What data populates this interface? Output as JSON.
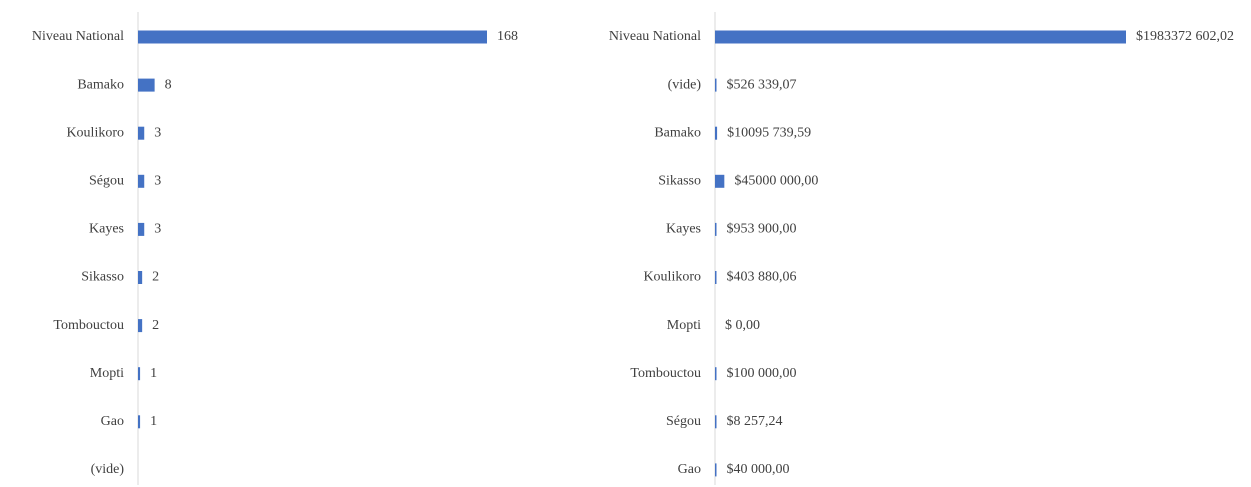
{
  "chart_data": [
    {
      "type": "bar",
      "orientation": "horizontal",
      "color": "#4472c4",
      "categories": [
        "Niveau National",
        "Bamako",
        "Koulikoro",
        "Ségou",
        "Kayes",
        "Sikasso",
        "Tombouctou",
        "Mopti",
        "Gao",
        "(vide)"
      ],
      "values": [
        168,
        8,
        3,
        3,
        3,
        2,
        2,
        1,
        1,
        null
      ]
    },
    {
      "type": "bar",
      "orientation": "horizontal",
      "color": "#4472c4",
      "categories": [
        "Niveau National",
        "(vide)",
        "Bamako",
        "Sikasso",
        "Kayes",
        "Koulikoro",
        "Mopti",
        "Tombouctou",
        "Ségou",
        "Gao"
      ],
      "values": [
        1983372602.02,
        526339.07,
        10095739.59,
        45000000,
        953900,
        403880.06,
        0,
        100000,
        8257.24,
        40000
      ],
      "value_labels": [
        "$1983372 602,02",
        "$526 339,07",
        "$10095 739,59",
        "$45000 000,00",
        "$953 900,00",
        "$403 880,06",
        "$ 0,00",
        "$100 000,00",
        "$8 257,24",
        "$40 000,00"
      ]
    }
  ]
}
